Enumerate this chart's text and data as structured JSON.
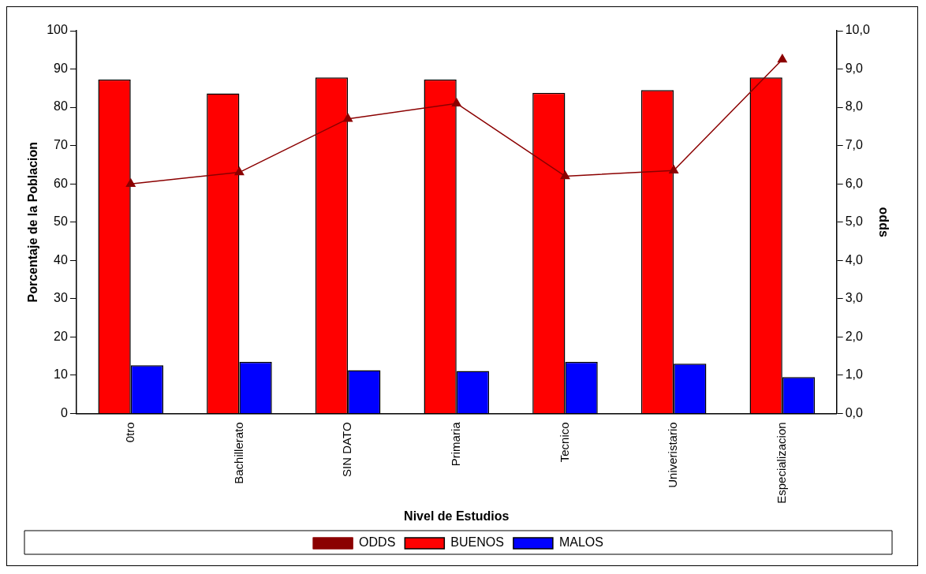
{
  "chart_data": {
    "type": "bar",
    "xlabel": "Nivel de Estudios",
    "ylabel": "Porcentaje de la Poblacion",
    "y2label": "odds",
    "categories": [
      "0tro",
      "Bachillerato",
      "SIN DATO",
      "Primaria",
      "Tecnico",
      "Univeristario",
      "Especializacion"
    ],
    "series": [
      {
        "name": "BUENOS",
        "color": "#ff0000",
        "values": [
          87.3,
          83.6,
          87.8,
          87.3,
          83.8,
          84.5,
          87.8
        ]
      },
      {
        "name": "MALOS",
        "color": "#0000ff",
        "values": [
          12.6,
          13.5,
          11.3,
          11.1,
          13.5,
          13.0,
          9.5
        ]
      },
      {
        "name": "ODDS",
        "type": "line",
        "axis": "y2",
        "color": "#8b0000",
        "marker": "triangle",
        "values": [
          6.0,
          6.3,
          7.7,
          8.1,
          6.2,
          6.35,
          9.25
        ]
      }
    ],
    "ylim": [
      0,
      100
    ],
    "yticks": [
      0,
      10,
      20,
      30,
      40,
      50,
      60,
      70,
      80,
      90,
      100
    ],
    "y2lim": [
      0,
      10
    ],
    "y2ticks": [
      {
        "value": 0,
        "label": "0,0"
      },
      {
        "value": 1,
        "label": "1,0"
      },
      {
        "value": 2,
        "label": "2,0"
      },
      {
        "value": 3,
        "label": "3,0"
      },
      {
        "value": 4,
        "label": "4,0"
      },
      {
        "value": 5,
        "label": "5,0"
      },
      {
        "value": 6,
        "label": "6,0"
      },
      {
        "value": 7,
        "label": "7,0"
      },
      {
        "value": 8,
        "label": "8,0"
      },
      {
        "value": 9,
        "label": "9,0"
      },
      {
        "value": 10,
        "label": "10,0"
      }
    ],
    "grid": false,
    "legend": "bottom"
  }
}
